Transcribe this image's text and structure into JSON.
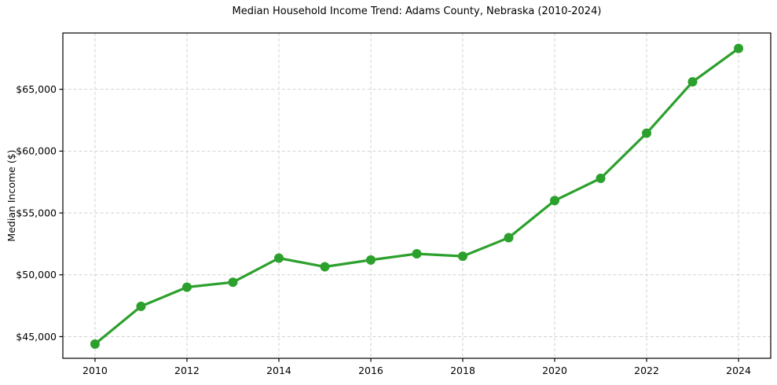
{
  "figure": {
    "background_color": "#ffffff",
    "text_color": "#000000",
    "axis_color": "#000000",
    "grid_color": "#d2d2d2"
  },
  "chart_data": {
    "type": "line",
    "title": "Median Household Income Trend: Adams County, Nebraska (2010-2024)",
    "xlabel": "",
    "ylabel": "Median Income ($)",
    "x": [
      2010,
      2011,
      2012,
      2013,
      2014,
      2015,
      2016,
      2017,
      2018,
      2019,
      2020,
      2021,
      2022,
      2023,
      2024
    ],
    "values": [
      44400,
      47450,
      49000,
      49400,
      51350,
      50650,
      51200,
      51700,
      51500,
      53000,
      56000,
      57800,
      61450,
      65600,
      68300
    ],
    "series_name": "Median Household Income",
    "line_color": "#2ca02c",
    "marker": "circle",
    "marker_color": "#2ca02c",
    "xlim": [
      2009.3,
      2024.7
    ],
    "ylim": [
      43250,
      69550
    ],
    "xticks": {
      "values": [
        2010,
        2012,
        2014,
        2016,
        2018,
        2020,
        2022,
        2024
      ],
      "labels": [
        "2010",
        "2012",
        "2014",
        "2016",
        "2018",
        "2020",
        "2022",
        "2024"
      ]
    },
    "yticks": {
      "values": [
        45000,
        50000,
        55000,
        60000,
        65000
      ],
      "labels": [
        "$45,000",
        "$50,000",
        "$55,000",
        "$60,000",
        "$65,000"
      ]
    },
    "grid": true,
    "grid_style": "dashed",
    "legend": "none"
  }
}
